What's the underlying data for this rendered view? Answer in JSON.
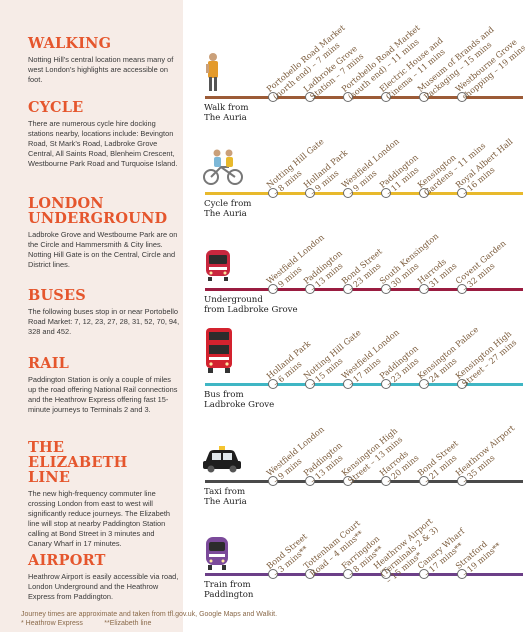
{
  "left": {
    "sections": [
      {
        "title": "WALKING",
        "text": "Notting Hill’s central location means many of west London’s highlights are accessible on foot."
      },
      {
        "title": "CYCLE",
        "text": "There are numerous cycle hire docking stations nearby, locations include: Bevington Road, St Mark’s Road, Ladbroke Grove Central, All Saints Road, Blenheim Crescent, Westbourne Park Road and Turquoise Island."
      },
      {
        "title": "LONDON UNDERGROUND",
        "text": "Ladbroke Grove and Westbourne Park are on the Circle and Hammersmith & City lines. Notting Hill Gate is on the Central, Circle and District lines."
      },
      {
        "title": "BUSES",
        "text": "The following buses stop in or near Portobello Road Market: 7, 12, 23, 27, 28, 31, 52, 70, 94, 328 and 452."
      },
      {
        "title": "RAIL",
        "text": "Paddington Station is only a couple of miles up the road offering National Rail connections and the Heathrow Express offering fast 15-minute journeys to Terminals 2 and 3."
      },
      {
        "title": "THE ELIZABETH LINE",
        "text": "The new high-frequency commuter line crossing London from east to west will significantly reduce journeys. The Elizabeth line will stop at nearby Paddington Station calling at Bond Street in 3 minutes and Canary Wharf in 17 minutes."
      },
      {
        "title": "AIRPORT",
        "text": "Heathrow Airport is easily accessible via road, London Underground and the Heathrow Express from Paddington."
      }
    ]
  },
  "routes": [
    {
      "mode": "Walk from\nThe Auria",
      "color": "#9c5b37",
      "icon": "walker-icon",
      "stops": [
        "Portobello Road Market\n(north end) – 7 mins",
        "Ladbroke Grove\nStation – 7 mins",
        "Portobello Road Market\n(south end) – 11 mins",
        "Electric House and\nCinema – 11 mins",
        "Museum of Brands and\nPackaging – 15 mins",
        "Westbourne Grove\nshopping – 19 mins"
      ]
    },
    {
      "mode": "Cycle from\nThe Auria",
      "color": "#e8b92c",
      "icon": "cyclists-icon",
      "stops": [
        "Notting Hill Gate\n– 8 mins",
        "Holland Park\n– 9 mins",
        "Westfield London\n– 9 mins",
        "Paddington\n– 11 mins",
        "Kensington\nGardens – 11 mins",
        "Royal Albert Hall\n– 16 mins"
      ]
    },
    {
      "mode": "Underground\nfrom Ladbroke Grove",
      "color": "#9a1c40",
      "icon": "tube-train-icon",
      "stops": [
        "Westfield London\n– 9 mins",
        "Paddington\n– 13 mins",
        "Bond Street\n– 23 mins",
        "South Kensington\n– 30 mins",
        "Harrods\n– 31 mins",
        "Covent Garden\n– 32 mins"
      ]
    },
    {
      "mode": "Bus from\nLadbroke Grove",
      "color": "#3fb6c4",
      "icon": "double-decker-bus-icon",
      "stops": [
        "Holland Park\n– 6 mins",
        "Notting Hill Gate\n– 15 mins",
        "Westfield London\n– 17 mins",
        "Paddington\n– 23 mins",
        "Kensington Palace\n– 24 mins",
        "Kensington High\nStreet – 27 mins"
      ]
    },
    {
      "mode": "Taxi from\nThe Auria",
      "color": "#4a4a4a",
      "icon": "taxi-icon",
      "stops": [
        "Westfield London\n– 9 mins",
        "Paddington\n– 13 mins",
        "Kensington High\nStreet – 13 mins",
        "Harrods\n– 20 mins",
        "Bond Street\n– 21 mins",
        "Heathrow Airport\n– 35 mins"
      ]
    },
    {
      "mode": "Train from\nPaddington",
      "color": "#6c3f88",
      "icon": "train-icon",
      "stops": [
        "Bond Street\n– 3 mins**",
        "Tottenham Court\nRoad – 4 mins**",
        "Farringdon\n– 8 mins**",
        "Heathrow Airport\n(Terminals 2 & 3)\n– 15 mins*",
        "Canary Wharf\n– 17 mins**",
        "Stratford\n– 19 mins**"
      ]
    }
  ],
  "footer": {
    "note": "Journey times are approximate and taken from tfl.gov.uk, Google Maps and Walkit.",
    "legend_express": "* Heathrow Express",
    "legend_elizabeth": "**Elizabeth line"
  }
}
